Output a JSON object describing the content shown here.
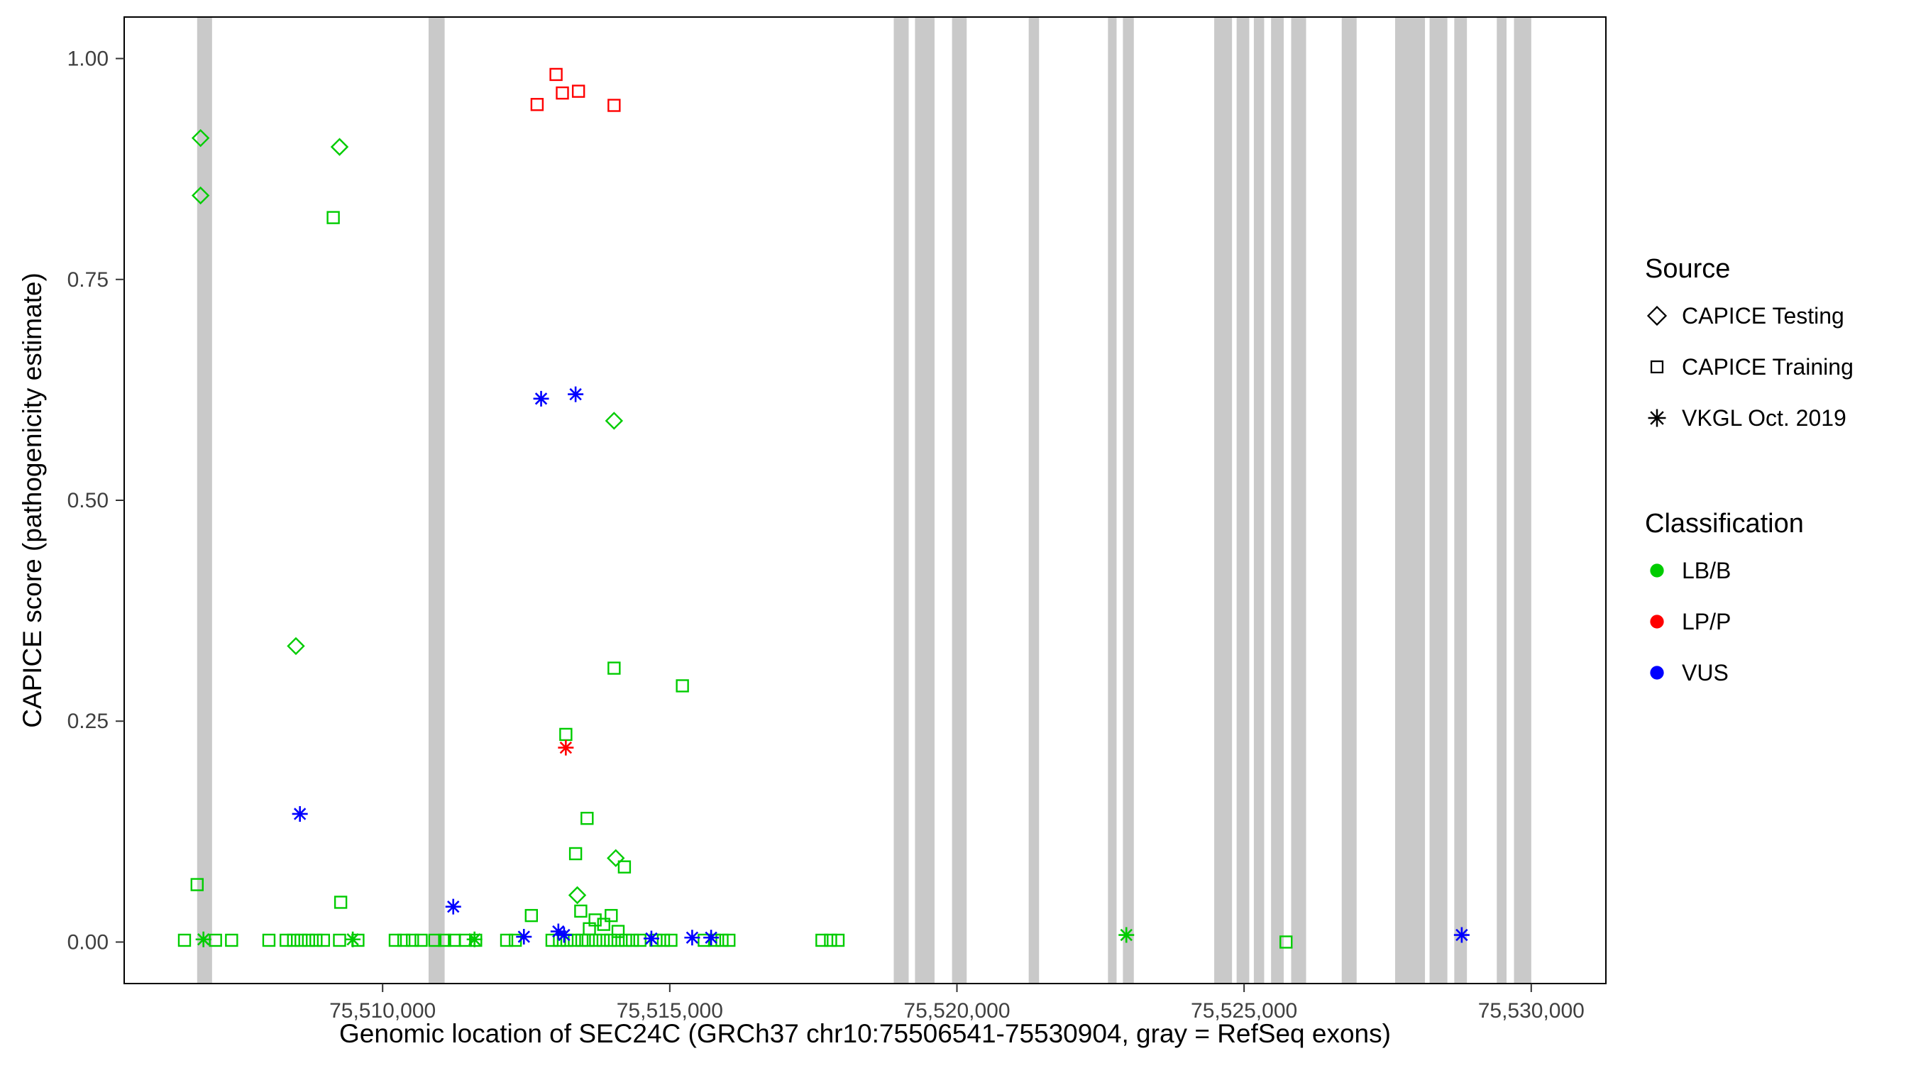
{
  "legend": {
    "source": {
      "title": "Source",
      "items": [
        {
          "label": "CAPICE Testing",
          "shape": "diamond"
        },
        {
          "label": "CAPICE Training",
          "shape": "square"
        },
        {
          "label": "VKGL Oct. 2019",
          "shape": "asterisk"
        }
      ]
    },
    "classification": {
      "title": "Classification",
      "items": [
        {
          "label": "LB/B",
          "color": "#00CC00"
        },
        {
          "label": "LP/P",
          "color": "#FF0000"
        },
        {
          "label": "VUS",
          "color": "#0000FF"
        }
      ]
    }
  },
  "chart_data": {
    "type": "scatter",
    "title": "",
    "xlabel": "Genomic location of SEC24C (GRCh37 chr10:75506541-75530904, gray = RefSeq exons)",
    "ylabel": "CAPICE score (pathogenicity estimate)",
    "xlim": [
      75505500,
      75531300
    ],
    "ylim": [
      -0.047,
      1.047
    ],
    "xticks": {
      "values": [
        75510000,
        75515000,
        75520000,
        75525000,
        75530000
      ],
      "labels": [
        "75,510,000",
        "75,515,000",
        "75,520,000",
        "75,525,000",
        "75,530,000"
      ]
    },
    "yticks": {
      "values": [
        0,
        0.25,
        0.5,
        0.75,
        1
      ],
      "labels": [
        "0.00",
        "0.25",
        "0.50",
        "0.75",
        "1.00"
      ]
    },
    "exon_color": "#C9C9C9",
    "exons": [
      [
        75506770,
        75507030
      ],
      [
        75510800,
        75511080
      ],
      [
        75518900,
        75519160
      ],
      [
        75519270,
        75519610
      ],
      [
        75519915,
        75520170
      ],
      [
        75521250,
        75521430
      ],
      [
        75522630,
        75522780
      ],
      [
        75522890,
        75523080
      ],
      [
        75524480,
        75524790
      ],
      [
        75524870,
        75525090
      ],
      [
        75525170,
        75525350
      ],
      [
        75525470,
        75525690
      ],
      [
        75525820,
        75526080
      ],
      [
        75526700,
        75526960
      ],
      [
        75527630,
        75528150
      ],
      [
        75528230,
        75528540
      ],
      [
        75528660,
        75528880
      ],
      [
        75529400,
        75529570
      ],
      [
        75529700,
        75530000
      ]
    ],
    "series": [
      {
        "name": "CAPICE Training / LB/B",
        "source": "CAPICE Training",
        "classification": "LB/B",
        "shape": "square",
        "color": "#00CC00",
        "points": [
          [
            75509140,
            0.82
          ],
          [
            75506770,
            0.065
          ],
          [
            75514030,
            0.31
          ],
          [
            75515220,
            0.29
          ],
          [
            75513190,
            0.235
          ],
          [
            75513560,
            0.14
          ],
          [
            75513360,
            0.1
          ],
          [
            75514210,
            0.085
          ],
          [
            75509270,
            0.045
          ],
          [
            75512590,
            0.03
          ],
          [
            75513450,
            0.035
          ],
          [
            75513980,
            0.03
          ],
          [
            75513700,
            0.025
          ],
          [
            75513850,
            0.02
          ],
          [
            75513600,
            0.015
          ],
          [
            75514100,
            0.012
          ],
          [
            75506550,
            0.002
          ],
          [
            75507090,
            0.002
          ],
          [
            75507370,
            0.002
          ],
          [
            75508020,
            0.002
          ],
          [
            75508320,
            0.002
          ],
          [
            75508450,
            0.002
          ],
          [
            75508580,
            0.002
          ],
          [
            75508710,
            0.002
          ],
          [
            75508840,
            0.002
          ],
          [
            75508970,
            0.002
          ],
          [
            75509250,
            0.002
          ],
          [
            75509570,
            0.002
          ],
          [
            75510220,
            0.002
          ],
          [
            75510370,
            0.002
          ],
          [
            75510520,
            0.002
          ],
          [
            75510670,
            0.002
          ],
          [
            75510910,
            0.002
          ],
          [
            75511080,
            0.002
          ],
          [
            75511250,
            0.002
          ],
          [
            75511440,
            0.002
          ],
          [
            75511620,
            0.002
          ],
          [
            75512160,
            0.002
          ],
          [
            75512310,
            0.002
          ],
          [
            75512950,
            0.002
          ],
          [
            75513080,
            0.002
          ],
          [
            75513210,
            0.002
          ],
          [
            75513340,
            0.002
          ],
          [
            75513470,
            0.002
          ],
          [
            75513580,
            0.002
          ],
          [
            75513710,
            0.002
          ],
          [
            75513840,
            0.002
          ],
          [
            75513970,
            0.002
          ],
          [
            75514100,
            0.002
          ],
          [
            75514230,
            0.002
          ],
          [
            75514350,
            0.002
          ],
          [
            75514480,
            0.002
          ],
          [
            75514760,
            0.002
          ],
          [
            75514890,
            0.002
          ],
          [
            75515020,
            0.002
          ],
          [
            75515600,
            0.002
          ],
          [
            75515780,
            0.002
          ],
          [
            75515910,
            0.002
          ],
          [
            75516030,
            0.002
          ],
          [
            75517650,
            0.002
          ],
          [
            75517800,
            0.002
          ],
          [
            75517930,
            0.002
          ],
          [
            75525730,
            0.0
          ]
        ]
      },
      {
        "name": "CAPICE Training / LP/P",
        "source": "CAPICE Training",
        "classification": "LP/P",
        "shape": "square",
        "color": "#FF0000",
        "points": [
          [
            75512690,
            0.948
          ],
          [
            75513020,
            0.982
          ],
          [
            75513130,
            0.961
          ],
          [
            75513410,
            0.963
          ],
          [
            75514030,
            0.947
          ]
        ]
      },
      {
        "name": "CAPICE Testing / LB/B",
        "source": "CAPICE Testing",
        "classification": "LB/B",
        "shape": "diamond",
        "color": "#00CC00",
        "points": [
          [
            75506830,
            0.91
          ],
          [
            75506830,
            0.845
          ],
          [
            75509250,
            0.9
          ],
          [
            75508490,
            0.335
          ],
          [
            75514030,
            0.59
          ],
          [
            75514060,
            0.095
          ],
          [
            75513390,
            0.053
          ]
        ]
      },
      {
        "name": "VKGL Oct. 2019 / LB/B",
        "source": "VKGL Oct. 2019",
        "classification": "LB/B",
        "shape": "asterisk",
        "color": "#00CC00",
        "points": [
          [
            75506880,
            0.003
          ],
          [
            75509480,
            0.003
          ],
          [
            75511600,
            0.003
          ],
          [
            75522950,
            0.008
          ]
        ]
      },
      {
        "name": "VKGL Oct. 2019 / LP/P",
        "source": "VKGL Oct. 2019",
        "classification": "LP/P",
        "shape": "asterisk",
        "color": "#FF0000",
        "points": [
          [
            75513190,
            0.22
          ]
        ]
      },
      {
        "name": "VKGL Oct. 2019 / VUS",
        "source": "VKGL Oct. 2019",
        "classification": "VUS",
        "shape": "asterisk",
        "color": "#0000FF",
        "points": [
          [
            75512760,
            0.615
          ],
          [
            75513360,
            0.62
          ],
          [
            75508560,
            0.145
          ],
          [
            75511230,
            0.04
          ],
          [
            75512460,
            0.006
          ],
          [
            75513060,
            0.012
          ],
          [
            75513160,
            0.008
          ],
          [
            75514680,
            0.004
          ],
          [
            75515390,
            0.005
          ],
          [
            75515720,
            0.005
          ],
          [
            75528790,
            0.008
          ]
        ]
      }
    ]
  }
}
